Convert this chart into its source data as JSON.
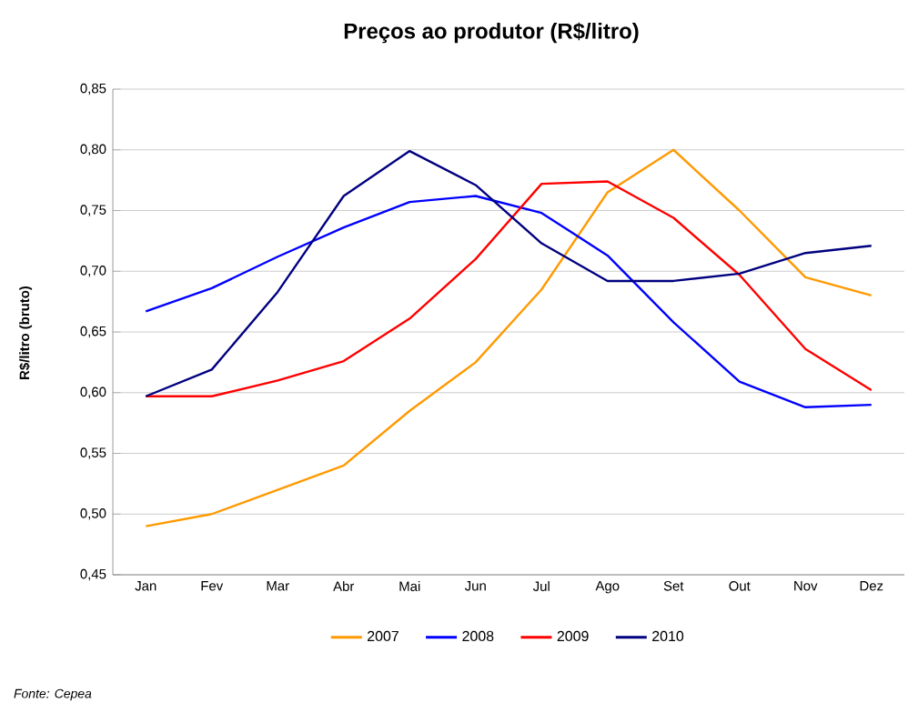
{
  "chart_data": {
    "type": "line",
    "title": "Preços ao produtor (R$/litro)",
    "ylabel": "R$/litro (bruto)",
    "categories": [
      "Jan",
      "Fev",
      "Mar",
      "Abr",
      "Mai",
      "Jun",
      "Jul",
      "Ago",
      "Set",
      "Out",
      "Nov",
      "Dez"
    ],
    "series": [
      {
        "name": "2007",
        "color": "#ff9900",
        "values": [
          0.49,
          0.5,
          0.52,
          0.54,
          0.585,
          0.625,
          0.685,
          0.765,
          0.8,
          0.75,
          0.695,
          0.68
        ]
      },
      {
        "name": "2008",
        "color": "#0000ff",
        "values": [
          0.667,
          0.686,
          0.712,
          0.736,
          0.757,
          0.762,
          0.748,
          0.713,
          0.658,
          0.609,
          0.588,
          0.59
        ]
      },
      {
        "name": "2009",
        "color": "#ff0000",
        "values": [
          0.597,
          0.597,
          0.61,
          0.626,
          0.661,
          0.71,
          0.772,
          0.774,
          0.744,
          0.697,
          0.636,
          0.602
        ]
      },
      {
        "name": "2010",
        "color": "#000080",
        "values": [
          0.597,
          0.619,
          0.683,
          0.762,
          0.799,
          0.771,
          0.723,
          0.692,
          0.692,
          0.698,
          0.715,
          0.721
        ]
      }
    ],
    "ylim": [
      0.45,
      0.85
    ],
    "yticks": [
      {
        "value": 0.45,
        "label": "0,45"
      },
      {
        "value": 0.5,
        "label": "0,50"
      },
      {
        "value": 0.55,
        "label": "0,55"
      },
      {
        "value": 0.6,
        "label": "0,60"
      },
      {
        "value": 0.65,
        "label": "0,65"
      },
      {
        "value": 0.7,
        "label": "0,70"
      },
      {
        "value": 0.75,
        "label": "0,75"
      },
      {
        "value": 0.8,
        "label": "0,80"
      },
      {
        "value": 0.85,
        "label": "0,85"
      }
    ],
    "grid": "y",
    "legend": "bottom",
    "marker": "none",
    "line_style": "solid",
    "annotations": [
      "Fonte: Cepea"
    ]
  }
}
